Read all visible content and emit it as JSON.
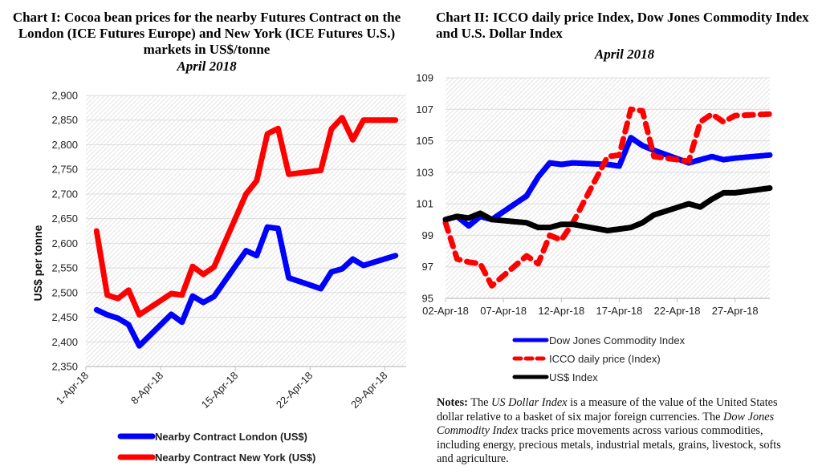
{
  "chart_data": [
    {
      "type": "line",
      "title": "Chart I: Cocoa bean prices for the nearby Futures Contract on the London (ICE Futures Europe) and New York (ICE Futures U.S.) markets in US$/tonne",
      "subtitle": "April 2018",
      "xlabel": "",
      "ylabel": "US$ per tonne",
      "ylim": [
        2350,
        2900
      ],
      "yticks": [
        2350,
        2400,
        2450,
        2500,
        2550,
        2600,
        2650,
        2700,
        2750,
        2800,
        2850,
        2900
      ],
      "ytick_labels": [
        "2,350",
        "2,400",
        "2,450",
        "2,500",
        "2,550",
        "2,600",
        "2,650",
        "2,700",
        "2,750",
        "2,800",
        "2,850",
        "2,900"
      ],
      "xlim_day": [
        1,
        31
      ],
      "xticks_day": [
        1,
        8,
        15,
        22,
        29
      ],
      "xtick_labels": [
        "1-Apr-18",
        "8-Apr-18",
        "15-Apr-18",
        "22-Apr-18",
        "29-Apr-18"
      ],
      "grid": true,
      "legend_position": "bottom",
      "x_day": [
        2,
        3,
        4,
        5,
        6,
        9,
        10,
        11,
        12,
        13,
        16,
        17,
        18,
        19,
        20,
        23,
        24,
        25,
        26,
        27,
        30
      ],
      "series": [
        {
          "name": "Nearby Contract London (US$)",
          "color": "#0000ff",
          "dash": false,
          "values": [
            2465,
            2455,
            2448,
            2435,
            2392,
            2456,
            2440,
            2493,
            2480,
            2492,
            2585,
            2575,
            2633,
            2630,
            2530,
            2508,
            2542,
            2548,
            2568,
            2555,
            2575
          ]
        },
        {
          "name": "Nearby Contract New York (US$)",
          "color": "#ff0000",
          "dash": false,
          "values": [
            2625,
            2495,
            2488,
            2505,
            2455,
            2498,
            2495,
            2553,
            2537,
            2552,
            2700,
            2727,
            2822,
            2833,
            2740,
            2748,
            2832,
            2855,
            2810,
            2850,
            2850
          ]
        }
      ]
    },
    {
      "type": "line",
      "title": "Chart II: ICCO daily price Index, Dow Jones Commodity Index and U.S. Dollar Index",
      "subtitle": "April 2018",
      "xlabel": "",
      "ylabel": "",
      "ylim": [
        95,
        109
      ],
      "yticks": [
        95,
        97,
        99,
        101,
        103,
        105,
        107,
        109
      ],
      "ytick_labels": [
        "95",
        "97",
        "99",
        "101",
        "103",
        "105",
        "107",
        "109"
      ],
      "xlim_day": [
        2,
        30
      ],
      "xticks_day": [
        2,
        7,
        12,
        17,
        22,
        27
      ],
      "xtick_labels": [
        "02-Apr-18",
        "07-Apr-18",
        "12-Apr-18",
        "17-Apr-18",
        "22-Apr-18",
        "27-Apr-18"
      ],
      "grid": true,
      "legend_position": "bottom",
      "x_day": [
        2,
        3,
        4,
        5,
        6,
        9,
        10,
        11,
        12,
        13,
        16,
        17,
        18,
        19,
        20,
        23,
        24,
        25,
        26,
        27,
        30
      ],
      "series": [
        {
          "name": "Dow Jones Commodity Index",
          "color": "#0000ff",
          "dash": false,
          "values": [
            100.0,
            100.2,
            99.6,
            100.2,
            100.0,
            101.5,
            102.7,
            103.6,
            103.5,
            103.6,
            103.5,
            103.4,
            105.2,
            104.7,
            104.4,
            103.6,
            103.8,
            104.0,
            103.8,
            103.9,
            104.1
          ]
        },
        {
          "name": "ICCO daily price (Index)",
          "color": "#ff0000",
          "dash": true,
          "values": [
            99.8,
            97.5,
            97.3,
            97.2,
            95.8,
            97.7,
            97.2,
            99.0,
            98.7,
            99.8,
            104.0,
            104.1,
            107.0,
            106.9,
            104.0,
            103.7,
            106.2,
            106.7,
            106.2,
            106.6,
            106.7
          ]
        },
        {
          "name": "US$ Index",
          "color": "#000000",
          "dash": false,
          "values": [
            100.0,
            100.2,
            100.1,
            100.4,
            100.0,
            99.8,
            99.5,
            99.5,
            99.7,
            99.7,
            99.3,
            99.4,
            99.5,
            99.8,
            100.3,
            101.0,
            100.8,
            101.3,
            101.7,
            101.7,
            102.0
          ]
        }
      ]
    }
  ],
  "notes": {
    "label": "Notes:",
    "segments": [
      {
        "text": " The ",
        "italic": false
      },
      {
        "text": "US Dollar Index",
        "italic": true
      },
      {
        "text": " is a measure of the value of the United States dollar relative to a basket of six major foreign currencies. The ",
        "italic": false
      },
      {
        "text": "Dow Jones Commodity Index",
        "italic": true
      },
      {
        "text": " tracks price movements across various commodities, including energy, precious metals, industrial metals, grains, livestock, softs and agriculture.",
        "italic": false
      }
    ]
  }
}
